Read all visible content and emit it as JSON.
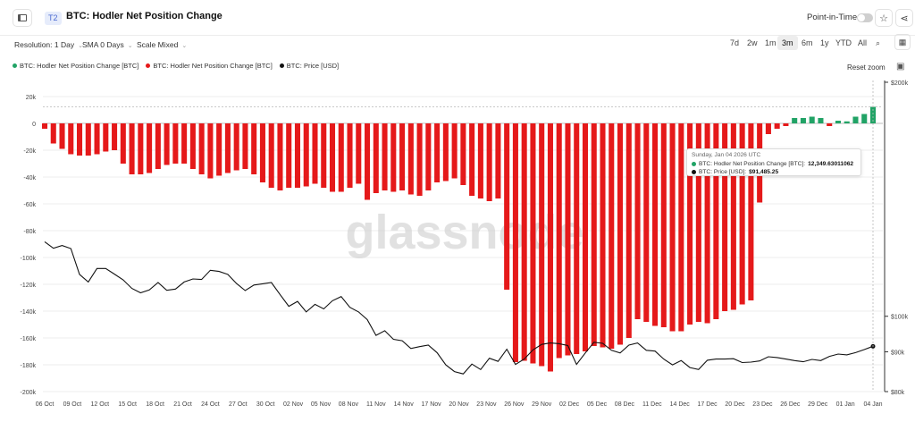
{
  "header": {
    "tier_badge": "T2",
    "title": "BTC: Hodler Net Position Change",
    "point_in_time_label": "Point-in-Time",
    "icons": [
      "sidebar-toggle-icon",
      "star-icon",
      "share-icon"
    ]
  },
  "controls": {
    "resolution": "Resolution: 1 Day",
    "sma": "SMA 0 Days",
    "scale": "Scale Mixed",
    "ranges": [
      "7d",
      "2w",
      "1m",
      "3m",
      "6m",
      "1y",
      "YTD",
      "All"
    ],
    "active_range": "3m",
    "reset_zoom": "Reset zoom"
  },
  "watermark": "glassnode",
  "tooltip": {
    "date": "Sunday, Jan 04 2026 UTC",
    "row1_label": "BTC: Hodler Net Position Change [BTC]:",
    "row1_value": "12,349.63011062",
    "row2_label": "BTC: Price [USD]:",
    "row2_value": "$91,485.25"
  },
  "colors": {
    "positive": "#21a366",
    "negative": "#e5191a",
    "price": "#111111"
  },
  "chart_data": {
    "type": "bar",
    "legend": [
      {
        "name": "BTC: Hodler Net Position Change [BTC]",
        "color": "#21a366"
      },
      {
        "name": "BTC: Hodler Net Position Change [BTC]",
        "color": "#e5191a"
      },
      {
        "name": "BTC: Price [USD]",
        "color": "#111111"
      }
    ],
    "legend_position": "top-left",
    "y_left": {
      "ticks": [
        "20k",
        "0",
        "-20k",
        "-40k",
        "-60k",
        "-80k",
        "-100k",
        "-120k",
        "-140k",
        "-160k",
        "-180k",
        "-200k"
      ],
      "range": [
        -200000,
        20000
      ]
    },
    "y_right": {
      "ticks": [
        "$200k",
        "$100k",
        "$90k",
        "$80k"
      ],
      "scale": "log"
    },
    "x_labels": [
      "06 Oct",
      "09 Oct",
      "12 Oct",
      "15 Oct",
      "18 Oct",
      "21 Oct",
      "24 Oct",
      "27 Oct",
      "30 Oct",
      "02 Nov",
      "05 Nov",
      "08 Nov",
      "11 Nov",
      "14 Nov",
      "17 Nov",
      "20 Nov",
      "23 Nov",
      "26 Nov",
      "29 Nov",
      "02 Dec",
      "05 Dec",
      "08 Dec",
      "11 Dec",
      "14 Dec",
      "17 Dec",
      "20 Dec",
      "23 Dec",
      "26 Dec",
      "29 Dec",
      "01 Jan",
      "04 Jan"
    ],
    "x_range": [
      "2025-10-06",
      "2026-01-04"
    ],
    "grid": true,
    "series": [
      {
        "name": "BTC: Hodler Net Position Change [BTC]",
        "values": [
          -4000,
          -15000,
          -19000,
          -23000,
          -24000,
          -24000,
          -23000,
          -21000,
          -20000,
          -30000,
          -38000,
          -38000,
          -37000,
          -34000,
          -31000,
          -30000,
          -30000,
          -34000,
          -38000,
          -41000,
          -39000,
          -37000,
          -35000,
          -34000,
          -38000,
          -44000,
          -48000,
          -50000,
          -48000,
          -48000,
          -47000,
          -45000,
          -48000,
          -51000,
          -51000,
          -48000,
          -45000,
          -57000,
          -52000,
          -50000,
          -51000,
          -50000,
          -53000,
          -54000,
          -50000,
          -44000,
          -43000,
          -41000,
          -46000,
          -54000,
          -56000,
          -58000,
          -56000,
          -124000,
          -178000,
          -177000,
          -179000,
          -181000,
          -185000,
          -175000,
          -173000,
          -172000,
          -170000,
          -166000,
          -167000,
          -168000,
          -165000,
          -160000,
          -146000,
          -148000,
          -151000,
          -152000,
          -155000,
          -155000,
          -150000,
          -148000,
          -149000,
          -146000,
          -140000,
          -139000,
          -135000,
          -132000,
          -59000,
          -8000,
          -4000,
          -2000,
          4000,
          4000,
          5000,
          4000,
          -2000,
          2000,
          1500,
          5000,
          7000,
          12350
        ]
      },
      {
        "name": "BTC: Price [USD]",
        "values": [
          124700,
          122300,
          123300,
          122200,
          113200,
          110700,
          115200,
          115200,
          113300,
          111400,
          108600,
          107200,
          108100,
          110500,
          108000,
          108400,
          110700,
          111700,
          111500,
          114600,
          114200,
          113200,
          110200,
          107900,
          109700,
          110100,
          110500,
          106600,
          103000,
          104500,
          101300,
          103600,
          102200,
          104700,
          106000,
          102700,
          101300,
          99000,
          94500,
          95800,
          93400,
          93000,
          90900,
          91400,
          91800,
          89800,
          86600,
          84900,
          84300,
          86800,
          85400,
          88300,
          87500,
          90700,
          86700,
          88100,
          90500,
          92000,
          92400,
          92200,
          91700,
          86700,
          89700,
          92600,
          92300,
          90400,
          89700,
          91800,
          92400,
          90400,
          90200,
          88100,
          86600,
          87700,
          85900,
          85400,
          87800,
          88100,
          88100,
          88200,
          87200,
          87300,
          87600,
          88700,
          88500,
          88100,
          87700,
          87400,
          88000,
          87700,
          88800,
          89400,
          89200,
          89800,
          90600,
          91485
        ]
      }
    ]
  }
}
